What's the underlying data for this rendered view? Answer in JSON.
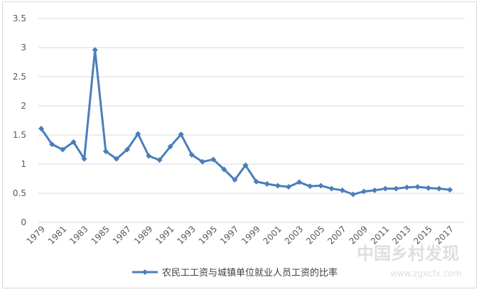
{
  "chart_data": {
    "type": "line",
    "title": "",
    "xlabel": "",
    "ylabel": "",
    "ylim": [
      0,
      3.5
    ],
    "yticks": [
      "0",
      "0.5",
      "1",
      "1.5",
      "2",
      "2.5",
      "3",
      "3.5"
    ],
    "grid": "horizontal",
    "legend_position": "bottom",
    "x": [
      1979,
      1980,
      1981,
      1982,
      1983,
      1984,
      1985,
      1986,
      1987,
      1988,
      1989,
      1990,
      1991,
      1992,
      1993,
      1994,
      1995,
      1996,
      1997,
      1998,
      1999,
      2000,
      2001,
      2002,
      2003,
      2004,
      2005,
      2006,
      2007,
      2008,
      2009,
      2010,
      2011,
      2012,
      2013,
      2014,
      2015,
      2016,
      2017
    ],
    "xtick_labels": [
      "1979",
      "1981",
      "1983",
      "1985",
      "1987",
      "1989",
      "1991",
      "1993",
      "1995",
      "1997",
      "1999",
      "2001",
      "2003",
      "2005",
      "2007",
      "2009",
      "2011",
      "2013",
      "2015",
      "2017"
    ],
    "series": [
      {
        "name": "农民工工资与城镇单位就业人员工资的比率",
        "color": "#4a7ebb",
        "values": [
          1.61,
          1.34,
          1.25,
          1.38,
          1.09,
          2.96,
          1.22,
          1.09,
          1.25,
          1.52,
          1.14,
          1.07,
          1.3,
          1.51,
          1.16,
          1.04,
          1.08,
          0.91,
          0.73,
          0.98,
          0.7,
          0.66,
          0.63,
          0.61,
          0.69,
          0.62,
          0.63,
          0.58,
          0.55,
          0.48,
          0.53,
          0.55,
          0.58,
          0.58,
          0.6,
          0.61,
          0.59,
          0.58,
          0.56
        ]
      }
    ]
  },
  "watermark": {
    "text1": "中国乡村发现",
    "text2": "www.zgxcfx.com"
  }
}
